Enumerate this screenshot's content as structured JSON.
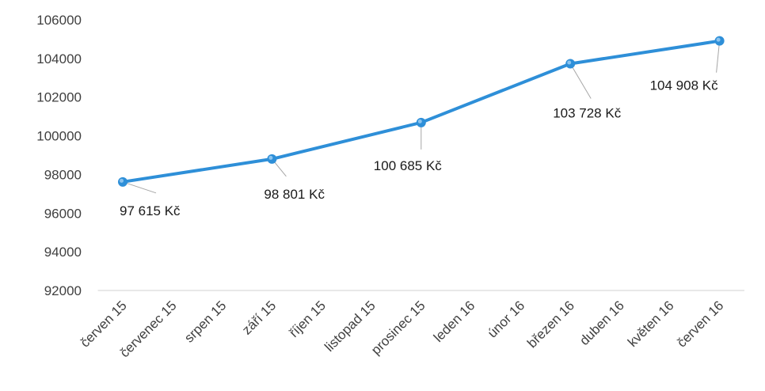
{
  "chart_data": {
    "type": "line",
    "title": "",
    "xlabel": "",
    "ylabel": "",
    "categories": [
      "červen 15",
      "červenec 15",
      "srpen 15",
      "září 15",
      "říjen 15",
      "listopad 15",
      "prosinec 15",
      "leden 16",
      "únor 16",
      "březen 16",
      "duben 16",
      "květen 16",
      "červen 16"
    ],
    "series": [
      {
        "points": [
          {
            "category": "červen 15",
            "value": 97615,
            "label": "97 615 Kč"
          },
          {
            "category": "září 15",
            "value": 98801,
            "label": "98 801 Kč"
          },
          {
            "category": "prosinec 15",
            "value": 100685,
            "label": "100 685 Kč"
          },
          {
            "category": "březen 16",
            "value": 103728,
            "label": "103 728 Kč"
          },
          {
            "category": "červen 16",
            "value": 104908,
            "label": "104 908 Kč"
          }
        ]
      }
    ],
    "ylim": [
      92000,
      106000
    ],
    "yticks": [
      "92000",
      "94000",
      "96000",
      "98000",
      "100000",
      "102000",
      "104000",
      "106000"
    ],
    "grid": false,
    "legend": "none",
    "colors": {
      "line": "#2e8fd8",
      "marker": "#2e8fd8",
      "marker_highlight": "#8cc4ef",
      "leader": "#a6a6a6",
      "axis": "#d0d0d0"
    }
  }
}
